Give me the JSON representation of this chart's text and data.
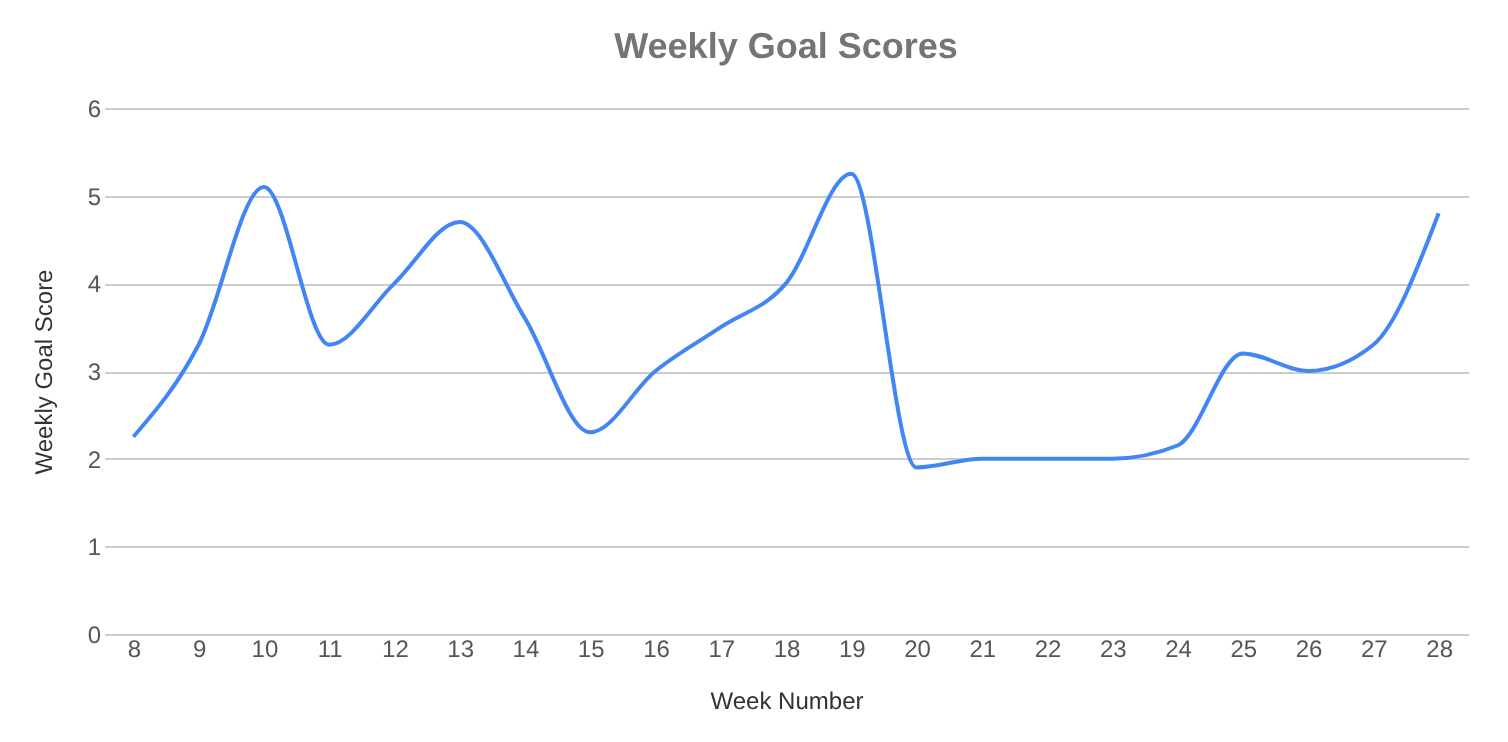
{
  "chart_data": {
    "type": "line",
    "title": "Weekly Goal Scores",
    "xlabel": "Week Number",
    "ylabel": "Weekly Goal Score",
    "categories": [
      "8",
      "9",
      "10",
      "11",
      "12",
      "13",
      "14",
      "15",
      "16",
      "17",
      "18",
      "19",
      "20",
      "21",
      "22",
      "23",
      "24",
      "25",
      "26",
      "27",
      "28"
    ],
    "series": [
      {
        "color": "#4285f4",
        "values": [
          2.25,
          3.3,
          5.1,
          3.3,
          4.0,
          4.7,
          3.6,
          2.3,
          3.0,
          3.5,
          4.0,
          5.25,
          1.9,
          2.0,
          2.0,
          2.0,
          2.15,
          3.2,
          3.0,
          3.3,
          4.8
        ]
      }
    ],
    "ylim": [
      0,
      6
    ],
    "yticks": [
      0,
      1,
      2,
      3,
      4,
      5,
      6
    ],
    "grid": "y",
    "marker": "none",
    "line_style": "solid"
  }
}
